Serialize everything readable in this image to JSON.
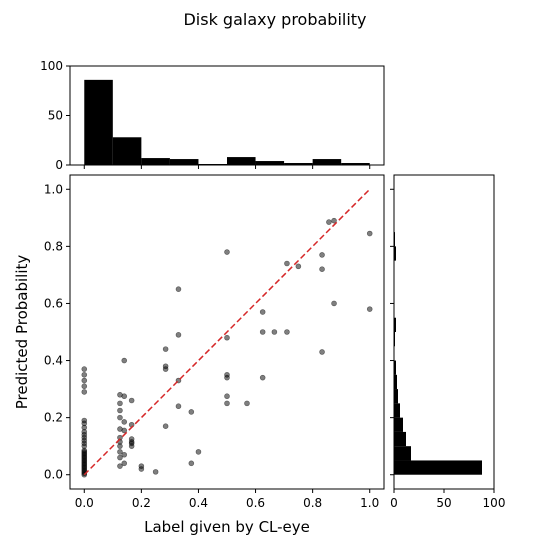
{
  "chart_data": {
    "type": "scatter",
    "title": "Disk galaxy probability",
    "xlabel": "Label given by CL-eye",
    "ylabel": "Predicted Probability",
    "xlim": [
      -0.05,
      1.05
    ],
    "ylim": [
      -0.05,
      1.05
    ],
    "x_ticks": [
      "0.0",
      "0.2",
      "0.4",
      "0.6",
      "0.8",
      "1.0"
    ],
    "y_ticks": [
      "0.0",
      "0.2",
      "0.4",
      "0.6",
      "0.8",
      "1.0"
    ],
    "point_color": "#000000",
    "point_alpha": 0.5,
    "reference_line": {
      "x": [
        0,
        1
      ],
      "y": [
        0,
        1
      ],
      "color": "#d62728",
      "style": "dashed"
    },
    "points": [
      [
        0,
        0
      ],
      [
        0,
        0.005
      ],
      [
        0,
        0.01
      ],
      [
        0,
        0.015
      ],
      [
        0,
        0.02
      ],
      [
        0,
        0.025
      ],
      [
        0,
        0.03
      ],
      [
        0,
        0.035
      ],
      [
        0,
        0.04
      ],
      [
        0,
        0.045
      ],
      [
        0,
        0.05
      ],
      [
        0,
        0.055
      ],
      [
        0,
        0.06
      ],
      [
        0,
        0.065
      ],
      [
        0,
        0.07
      ],
      [
        0,
        0.075
      ],
      [
        0,
        0.08
      ],
      [
        0,
        0.085
      ],
      [
        0,
        0.1
      ],
      [
        0,
        0.11
      ],
      [
        0,
        0.12
      ],
      [
        0,
        0.13
      ],
      [
        0,
        0.14
      ],
      [
        0,
        0.15
      ],
      [
        0,
        0.165
      ],
      [
        0,
        0.18
      ],
      [
        0,
        0.19
      ],
      [
        0,
        0.29
      ],
      [
        0,
        0.31
      ],
      [
        0,
        0.33
      ],
      [
        0,
        0.35
      ],
      [
        0,
        0.37
      ],
      [
        0.125,
        0.03
      ],
      [
        0.125,
        0.06
      ],
      [
        0.125,
        0.08
      ],
      [
        0.125,
        0.1
      ],
      [
        0.125,
        0.115
      ],
      [
        0.125,
        0.13
      ],
      [
        0.125,
        0.16
      ],
      [
        0.125,
        0.2
      ],
      [
        0.125,
        0.225
      ],
      [
        0.125,
        0.25
      ],
      [
        0.125,
        0.28
      ],
      [
        0.14,
        0.4
      ],
      [
        0.14,
        0.04
      ],
      [
        0.14,
        0.07
      ],
      [
        0.14,
        0.155
      ],
      [
        0.14,
        0.185
      ],
      [
        0.14,
        0.275
      ],
      [
        0.166,
        0.1
      ],
      [
        0.166,
        0.11
      ],
      [
        0.166,
        0.115
      ],
      [
        0.166,
        0.125
      ],
      [
        0.166,
        0.175
      ],
      [
        0.166,
        0.26
      ],
      [
        0.2,
        0.02
      ],
      [
        0.2,
        0.03
      ],
      [
        0.25,
        0.01
      ],
      [
        0.285,
        0.17
      ],
      [
        0.285,
        0.37
      ],
      [
        0.285,
        0.38
      ],
      [
        0.285,
        0.44
      ],
      [
        0.33,
        0.24
      ],
      [
        0.33,
        0.33
      ],
      [
        0.33,
        0.49
      ],
      [
        0.33,
        0.65
      ],
      [
        0.375,
        0.04
      ],
      [
        0.375,
        0.22
      ],
      [
        0.4,
        0.08
      ],
      [
        0.5,
        0.25
      ],
      [
        0.5,
        0.275
      ],
      [
        0.5,
        0.34
      ],
      [
        0.5,
        0.35
      ],
      [
        0.5,
        0.48
      ],
      [
        0.5,
        0.78
      ],
      [
        0.57,
        0.25
      ],
      [
        0.625,
        0.34
      ],
      [
        0.625,
        0.5
      ],
      [
        0.625,
        0.57
      ],
      [
        0.666,
        0.5
      ],
      [
        0.71,
        0.5
      ],
      [
        0.71,
        0.74
      ],
      [
        0.75,
        0.73
      ],
      [
        0.833,
        0.43
      ],
      [
        0.833,
        0.72
      ],
      [
        0.833,
        0.77
      ],
      [
        0.857,
        0.885
      ],
      [
        0.875,
        0.6
      ],
      [
        0.875,
        0.89
      ],
      [
        1.0,
        0.58
      ],
      [
        1.0,
        0.845
      ]
    ],
    "top_histogram": {
      "ylim": [
        0,
        100
      ],
      "y_ticks": [
        "0",
        "50",
        "100"
      ],
      "bin_edges": [
        0,
        0.1,
        0.2,
        0.3,
        0.4,
        0.5,
        0.6,
        0.7,
        0.8,
        0.9,
        1.0
      ],
      "counts": [
        86,
        28,
        7,
        6,
        1,
        8,
        4,
        2,
        6,
        2
      ]
    },
    "right_histogram": {
      "xlim": [
        0,
        100
      ],
      "x_ticks": [
        "0",
        "50",
        "100"
      ],
      "bin_edges": [
        0,
        0.05,
        0.1,
        0.15,
        0.2,
        0.25,
        0.3,
        0.35,
        0.4,
        0.45,
        0.5,
        0.55,
        0.6,
        0.65,
        0.7,
        0.75,
        0.8,
        0.85,
        0.9,
        0.95,
        1.0
      ],
      "counts": [
        88,
        17,
        12,
        9,
        6,
        4,
        3,
        2,
        0,
        1,
        2,
        0,
        0,
        0,
        0,
        2,
        1,
        0,
        0,
        0
      ]
    }
  }
}
